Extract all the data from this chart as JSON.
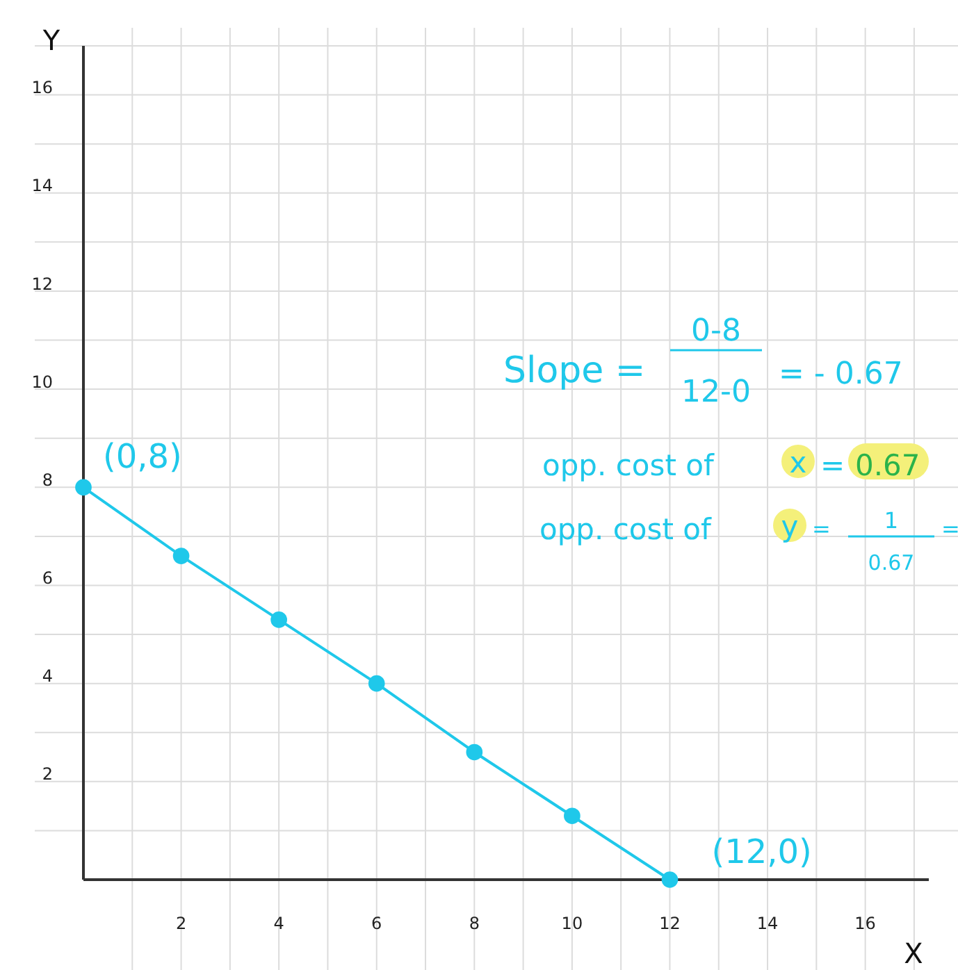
{
  "chart_data": {
    "type": "line",
    "xlabel": "X",
    "ylabel": "Y",
    "x": [
      0,
      2,
      4,
      6,
      8,
      10,
      12
    ],
    "series": [
      {
        "color": "#1fc8ea",
        "values": [
          8,
          6.6,
          5.3,
          4.0,
          2.6,
          1.3,
          0
        ]
      }
    ],
    "xlim": [
      0,
      17.3
    ],
    "ylim": [
      0,
      17
    ],
    "xticks": [
      {
        "value": 1,
        "label": null
      },
      2,
      {
        "value": 3,
        "label": null
      },
      4,
      {
        "value": 5,
        "label": null
      },
      6,
      {
        "value": 7,
        "label": null
      },
      8,
      {
        "value": 9,
        "label": null
      },
      10,
      {
        "value": 11,
        "label": null
      },
      12,
      {
        "value": 13,
        "label": null
      },
      14,
      {
        "value": 15,
        "label": null
      },
      16,
      {
        "value": 17,
        "label": null
      }
    ],
    "yticks": [
      {
        "value": 1,
        "label": null
      },
      2,
      {
        "value": 3,
        "label": null
      },
      4,
      {
        "value": 5,
        "label": null
      },
      6,
      {
        "value": 7,
        "label": null
      },
      8,
      {
        "value": 9,
        "label": null
      },
      10,
      {
        "value": 11,
        "label": null
      },
      12,
      {
        "value": 13,
        "label": null
      },
      14,
      {
        "value": 15,
        "label": null
      },
      16,
      {
        "value": 17,
        "label": null
      }
    ],
    "grid": true,
    "marker": "circle",
    "line_style": "solid",
    "annotations": [
      {
        "text": "(0,8)",
        "x": 0,
        "y": 8
      },
      {
        "text": "(12,0)",
        "x": 12,
        "y": 0
      },
      "Slope =",
      "0-8",
      "12-0",
      "= - 0.67",
      "opp. cost of",
      "x",
      "= ",
      "0.67",
      "opp. cost of",
      "y",
      "=",
      "1",
      "0.67",
      "="
    ]
  }
}
